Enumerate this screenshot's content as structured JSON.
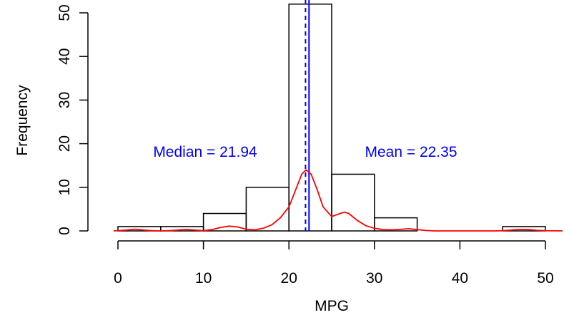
{
  "chart_data": {
    "type": "bar",
    "subtype": "histogram",
    "xlabel": "MPG",
    "ylabel": "Frequency",
    "xlim": [
      0,
      50
    ],
    "ylim": [
      0,
      50
    ],
    "x_ticks": [
      0,
      10,
      20,
      30,
      40,
      50
    ],
    "y_ticks": [
      0,
      10,
      20,
      30,
      40,
      50
    ],
    "grid": false,
    "bins": [
      {
        "start": 0,
        "end": 5,
        "count": 1
      },
      {
        "start": 5,
        "end": 10,
        "count": 1
      },
      {
        "start": 10,
        "end": 15,
        "count": 4
      },
      {
        "start": 15,
        "end": 20,
        "count": 10
      },
      {
        "start": 20,
        "end": 25,
        "count": 52
      },
      {
        "start": 25,
        "end": 30,
        "count": 13
      },
      {
        "start": 30,
        "end": 35,
        "count": 3
      },
      {
        "start": 35,
        "end": 40,
        "count": 0
      },
      {
        "start": 40,
        "end": 45,
        "count": 0
      },
      {
        "start": 45,
        "end": 50,
        "count": 1
      }
    ],
    "density_curve": {
      "color": "#ff0000",
      "points": [
        [
          -0.5,
          0
        ],
        [
          1,
          0.2
        ],
        [
          2,
          0.4
        ],
        [
          3,
          0.2
        ],
        [
          4,
          0.05
        ],
        [
          5,
          0
        ],
        [
          6,
          0.05
        ],
        [
          7,
          0.2
        ],
        [
          8,
          0.35
        ],
        [
          9,
          0.2
        ],
        [
          10,
          0.05
        ],
        [
          11,
          0.3
        ],
        [
          12,
          0.8
        ],
        [
          13,
          1.1
        ],
        [
          14,
          0.9
        ],
        [
          15,
          0.4
        ],
        [
          16,
          0.25
        ],
        [
          17,
          0.6
        ],
        [
          18,
          1.4
        ],
        [
          19,
          3.0
        ],
        [
          20,
          5.5
        ],
        [
          20.8,
          9.5
        ],
        [
          21.5,
          13.0
        ],
        [
          22,
          14.0
        ],
        [
          22.6,
          13.0
        ],
        [
          23.3,
          9.5
        ],
        [
          24,
          5.5
        ],
        [
          25,
          3.3
        ],
        [
          26,
          4.0
        ],
        [
          26.5,
          4.3
        ],
        [
          27,
          4.0
        ],
        [
          28,
          2.4
        ],
        [
          29,
          1.2
        ],
        [
          30,
          0.6
        ],
        [
          31,
          0.3
        ],
        [
          32,
          0.25
        ],
        [
          33,
          0.35
        ],
        [
          34,
          0.5
        ],
        [
          35,
          0.3
        ],
        [
          36,
          0.1
        ],
        [
          37,
          0
        ],
        [
          40,
          0
        ],
        [
          44,
          0
        ],
        [
          45,
          0.05
        ],
        [
          46,
          0.2
        ],
        [
          47,
          0.35
        ],
        [
          48,
          0.3
        ],
        [
          49,
          0.15
        ],
        [
          50,
          0.05
        ],
        [
          52,
          0
        ]
      ]
    },
    "reference_lines": [
      {
        "name": "median",
        "value": 21.94,
        "color": "#0000ff",
        "style": "dashed"
      },
      {
        "name": "mean",
        "value": 22.35,
        "color": "#0000ff",
        "style": "solid"
      }
    ],
    "annotations": {
      "median_text": "Median = 21.94",
      "mean_text": "Mean = 22.35",
      "color": "#0000ff"
    }
  }
}
